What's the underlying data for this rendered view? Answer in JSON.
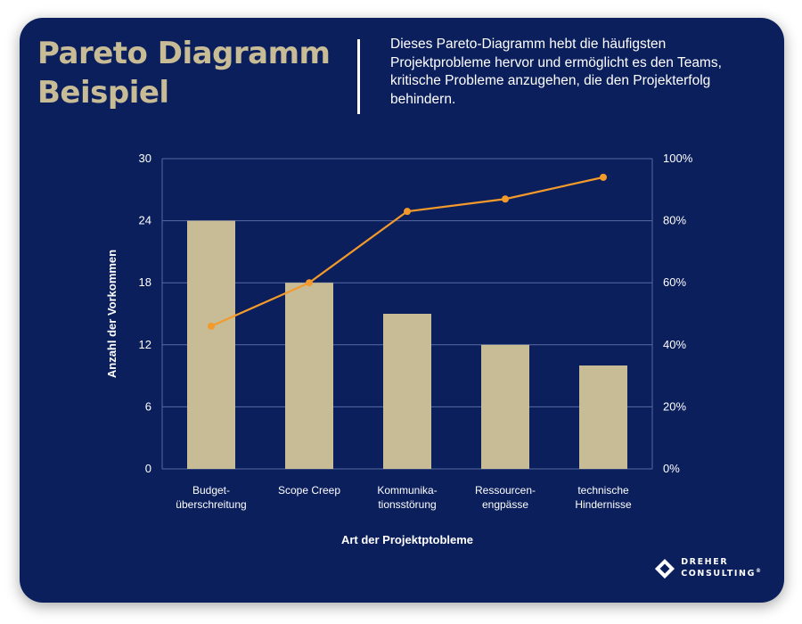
{
  "header": {
    "title": "Pareto Diagramm Beispiel",
    "description": "Dieses Pareto-Diagramm hebt die häufigsten Projektprobleme hervor und ermöglicht es den Teams, kritische Probleme anzugehen, die den Projekterfolg behindern."
  },
  "brand": {
    "line1": "DREHER",
    "line2": "CONSULTING",
    "mark": "®"
  },
  "colors": {
    "background": "#0b1f5c",
    "bar": "#c8bc96",
    "line": "#f39a2b",
    "grid": "#5a6aa0",
    "text": "#ffffff"
  },
  "chart_data": {
    "type": "bar",
    "categories": [
      [
        "Budget-",
        "überschreitung"
      ],
      [
        "Scope Creep"
      ],
      [
        "Kommunika-",
        "tionsstörung"
      ],
      [
        "Ressourcen-",
        "engpässe"
      ],
      [
        "technische",
        "Hindernisse"
      ]
    ],
    "series": [
      {
        "values": [
          24,
          18,
          15,
          12,
          10
        ],
        "axis": "left",
        "kind": "bar"
      },
      {
        "values": [
          46,
          60,
          83,
          87,
          94
        ],
        "axis": "right",
        "kind": "line"
      }
    ],
    "xlabel": "Art der Projektptobleme",
    "ylabel": "Anzahl der Vorkommen",
    "ylim": [
      0,
      30
    ],
    "yticks": [
      "0",
      "6",
      "12",
      "18",
      "24",
      "30"
    ],
    "y2lim": [
      0,
      100
    ],
    "y2ticks": [
      "0%",
      "20%",
      "40%",
      "60%",
      "80%",
      "100%"
    ],
    "grid": true
  }
}
